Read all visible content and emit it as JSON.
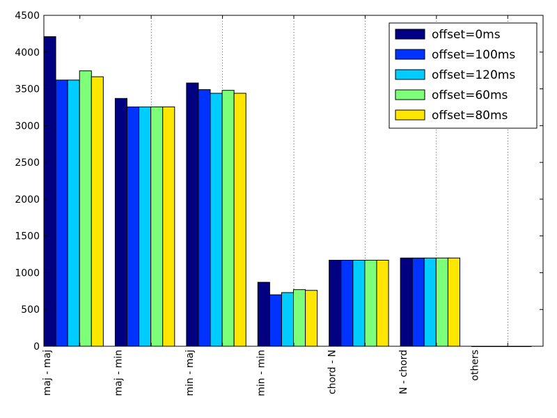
{
  "chart_data": {
    "type": "bar",
    "title": "",
    "xlabel": "",
    "ylabel": "",
    "categories": [
      "maj - maj",
      "maj - min",
      "min - maj",
      "min - min",
      "chord - N",
      "N - chord",
      "others"
    ],
    "ylim": [
      0,
      4500
    ],
    "yticks": [
      0,
      500,
      1000,
      1500,
      2000,
      2500,
      3000,
      3500,
      4000,
      4500
    ],
    "grid": "x-dotted",
    "legend_position": "top-right",
    "series": [
      {
        "name": "offset=0ms",
        "color": "#000080",
        "values": [
          4210,
          3370,
          3580,
          870,
          1170,
          1200,
          0
        ]
      },
      {
        "name": "offset=100ms",
        "color": "#0033ff",
        "values": [
          3620,
          3255,
          3490,
          700,
          1170,
          1200,
          0
        ]
      },
      {
        "name": "offset=120ms",
        "color": "#00ccff",
        "values": [
          3620,
          3255,
          3440,
          730,
          1170,
          1200,
          0
        ]
      },
      {
        "name": "offset=60ms",
        "color": "#7dff7a",
        "values": [
          3745,
          3255,
          3480,
          770,
          1170,
          1200,
          0
        ]
      },
      {
        "name": "offset=80ms",
        "color": "#ffe600",
        "values": [
          3665,
          3255,
          3440,
          760,
          1170,
          1200,
          0
        ]
      }
    ]
  }
}
